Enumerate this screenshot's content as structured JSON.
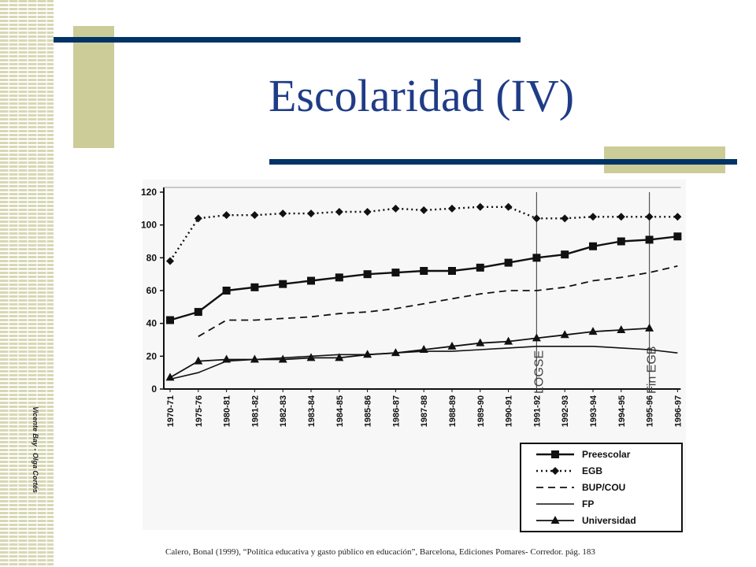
{
  "slide": {
    "title": "Escolaridad (IV)",
    "author": "Vicente Bay - Olga Cortés",
    "source": "Calero, Bonal (1999), “Política educativa y gasto público en educación”, Barcelona, Ediciones Pomares- Corredor. pág. 183"
  },
  "colors": {
    "title": "#1f3c86",
    "accent_line": "#003366",
    "deco": "#cccc99",
    "ink": "#111111"
  },
  "chart_data": {
    "type": "line",
    "categories": [
      "1970-71",
      "1975-76",
      "1980-81",
      "1981-82",
      "1982-83",
      "1983-84",
      "1984-85",
      "1985-86",
      "1986-87",
      "1987-88",
      "1988-89",
      "1989-90",
      "1990-91",
      "1991-92",
      "1992-93",
      "1993-94",
      "1994-95",
      "1995-96",
      "1996-97"
    ],
    "ylim": [
      0,
      120
    ],
    "yticks": [
      "0",
      "20",
      "40",
      "60",
      "80",
      "100",
      "120"
    ],
    "series": [
      {
        "name": "Preescolar",
        "style": "solid-square",
        "values": [
          42,
          47,
          60,
          62,
          64,
          66,
          68,
          70,
          71,
          72,
          72,
          74,
          77,
          80,
          82,
          87,
          90,
          91,
          93
        ]
      },
      {
        "name": "EGB",
        "style": "dotted-diamond",
        "values": [
          78,
          104,
          106,
          106,
          107,
          107,
          108,
          108,
          110,
          109,
          110,
          111,
          111,
          104,
          104,
          105,
          105,
          105,
          105
        ]
      },
      {
        "name": "BUP/COU",
        "style": "dashed",
        "values": [
          null,
          32,
          42,
          42,
          43,
          44,
          46,
          47,
          49,
          52,
          55,
          58,
          60,
          60,
          62,
          66,
          68,
          71,
          75
        ]
      },
      {
        "name": "FP",
        "style": "solid",
        "values": [
          6,
          10,
          17,
          18,
          19,
          20,
          21,
          21,
          22,
          23,
          23,
          24,
          25,
          26,
          26,
          26,
          25,
          24,
          22
        ]
      },
      {
        "name": "Universidad",
        "style": "solid-triangle",
        "values": [
          7,
          17,
          18,
          18,
          18,
          19,
          19,
          21,
          22,
          24,
          26,
          28,
          29,
          31,
          33,
          35,
          36,
          37,
          null
        ]
      }
    ],
    "annotations": [
      {
        "label": "LOGSE",
        "category": "1991-92"
      },
      {
        "label": "Fin EGB",
        "category": "1995-96"
      }
    ],
    "legend": "bottom-right"
  }
}
